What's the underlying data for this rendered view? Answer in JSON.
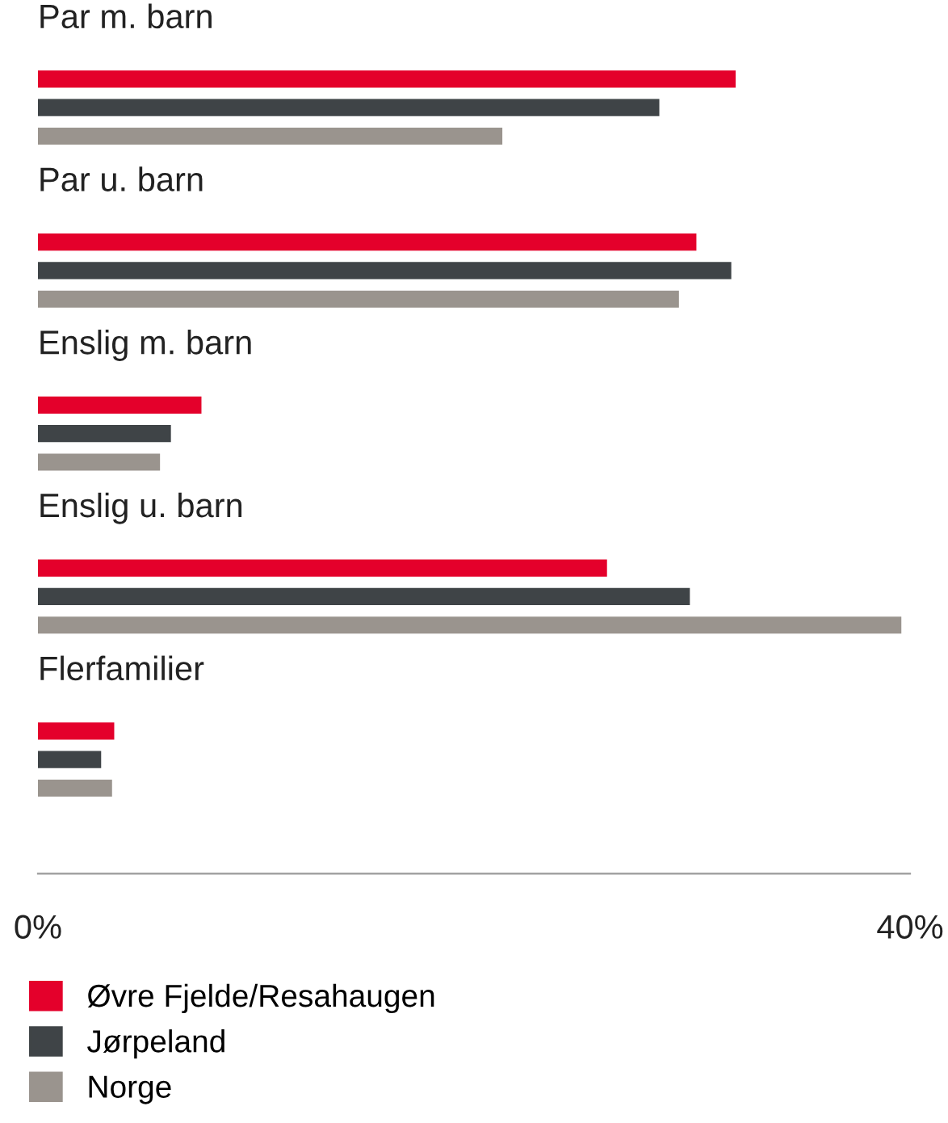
{
  "chart_data": {
    "type": "bar",
    "orientation": "horizontal",
    "categories": [
      "Par m. barn",
      "Par u. barn",
      "Enslig m. barn",
      "Enslig u. barn",
      "Flerfamilier"
    ],
    "series": [
      {
        "name": "Øvre Fjelde/Resahaugen",
        "color": "#e4002b",
        "values": [
          32.0,
          30.2,
          7.5,
          26.1,
          3.5
        ]
      },
      {
        "name": "Jørpeland",
        "color": "#3f4447",
        "values": [
          28.5,
          31.8,
          6.1,
          29.9,
          2.9
        ]
      },
      {
        "name": "Norge",
        "color": "#9a948e",
        "values": [
          21.3,
          29.4,
          5.6,
          39.6,
          3.4
        ]
      }
    ],
    "xlim": [
      0,
      40
    ],
    "xticks": [
      {
        "value": 0,
        "label": "0%"
      },
      {
        "value": 40,
        "label": "40%"
      }
    ],
    "grid": false,
    "legend": "bottom"
  }
}
